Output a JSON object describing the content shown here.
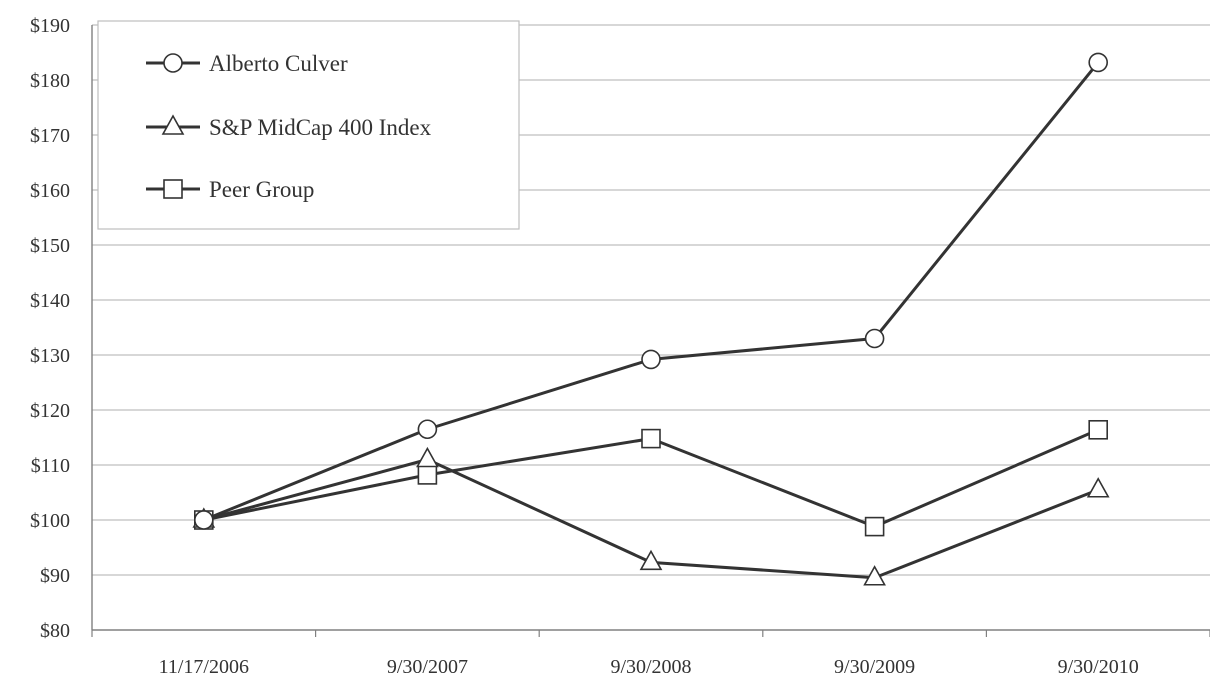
{
  "chart_data": {
    "type": "line",
    "title": "",
    "xlabel": "",
    "ylabel": "",
    "categories": [
      "11/17/2006",
      "9/30/2007",
      "9/30/2008",
      "9/30/2009",
      "9/30/2010"
    ],
    "ylim": [
      80,
      190
    ],
    "yticks": [
      80,
      90,
      100,
      110,
      120,
      130,
      140,
      150,
      160,
      170,
      180,
      190
    ],
    "ytick_labels": [
      "$80",
      "$90",
      "$100",
      "$110",
      "$120",
      "$130",
      "$140",
      "$150",
      "$160",
      "$170",
      "$180",
      "$190"
    ],
    "grid": true,
    "legend_position": "top-left",
    "series": [
      {
        "name": "Alberto Culver",
        "marker": "circle",
        "values": [
          100,
          116.5,
          129.2,
          133,
          183.2
        ]
      },
      {
        "name": "S&P MidCap 400 Index",
        "marker": "triangle",
        "values": [
          100,
          111,
          92.3,
          89.5,
          105.5
        ]
      },
      {
        "name": "Peer Group",
        "marker": "square",
        "values": [
          100,
          108.2,
          114.8,
          98.8,
          116.4
        ]
      }
    ],
    "colors": {
      "line": "#333333",
      "grid": "#bfbfbf",
      "axis": "#808080",
      "marker_fill": "#ffffff"
    }
  }
}
